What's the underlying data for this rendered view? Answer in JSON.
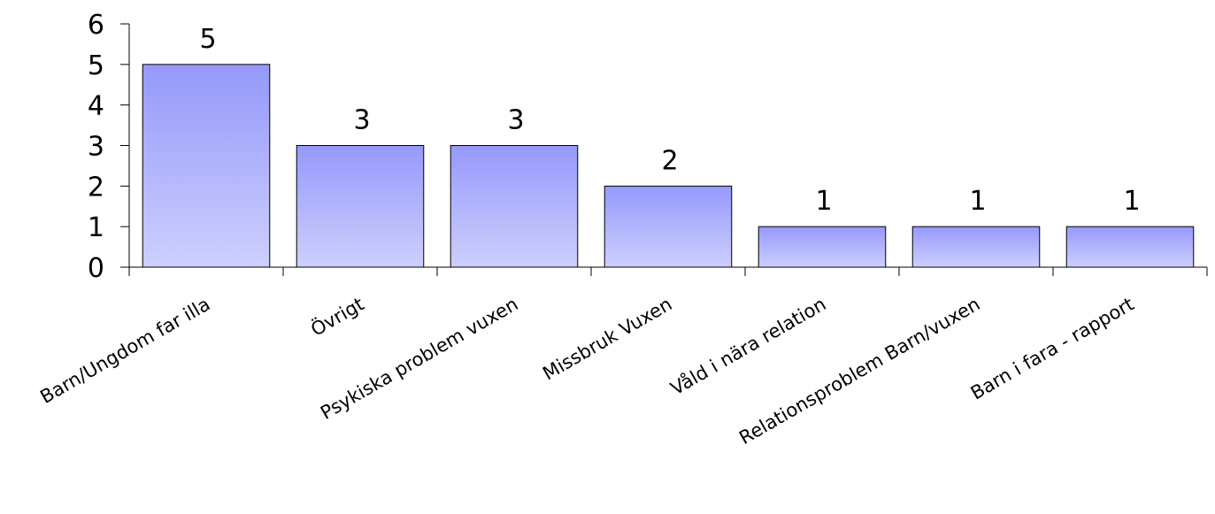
{
  "chart_data": {
    "type": "bar",
    "title": "",
    "xlabel": "",
    "ylabel": "",
    "ylim": [
      0,
      6
    ],
    "yticks": [
      0,
      1,
      2,
      3,
      4,
      5,
      6
    ],
    "grid": false,
    "legend": "none",
    "categories": [
      "Barn/Ungdom far illa",
      "Övrigt",
      "Psykiska problem vuxen",
      "Missbruk Vuxen",
      "Våld i nära relation",
      "Relationsproblem Barn/vuxen",
      "Barn i fara - rapport"
    ],
    "values": [
      5,
      3,
      3,
      2,
      1,
      1,
      1
    ],
    "data_labels": [
      "5",
      "3",
      "3",
      "2",
      "1",
      "1",
      "1"
    ],
    "colors": {
      "bar_top": "#9599fb",
      "bar_bottom": "#cdcffd",
      "bar_edge": "#000000",
      "axis": "#000000"
    }
  }
}
